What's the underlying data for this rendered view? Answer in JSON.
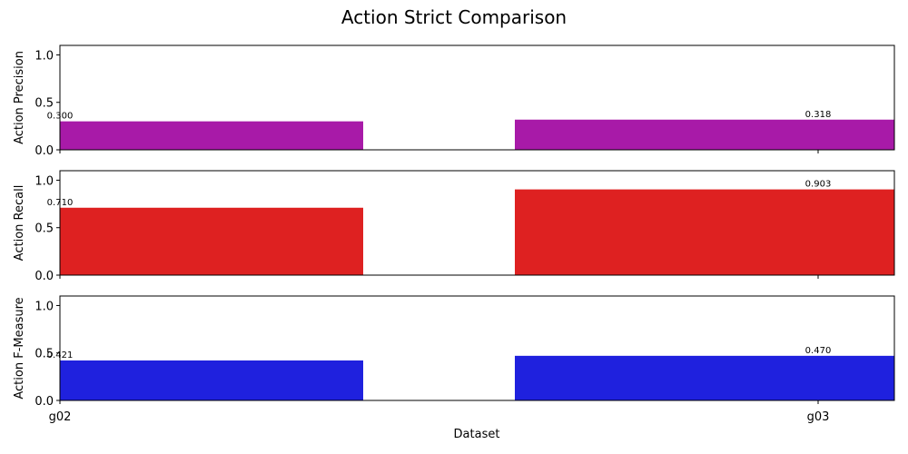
{
  "figure": {
    "title": "Action Strict Comparison"
  },
  "chart_data": [
    {
      "type": "bar",
      "ylabel": "Action Precision",
      "xlabel": "",
      "categories": [
        "g02",
        "g03"
      ],
      "values": [
        0.3,
        0.318
      ],
      "value_labels": [
        "0.300",
        "0.318"
      ],
      "ylim": [
        0,
        1.1
      ],
      "yticks": [
        "0.0",
        "0.5",
        "1.0"
      ],
      "color": "#a81aa8",
      "show_xtick_labels": false
    },
    {
      "type": "bar",
      "ylabel": "Action Recall",
      "xlabel": "",
      "categories": [
        "g02",
        "g03"
      ],
      "values": [
        0.71,
        0.903
      ],
      "value_labels": [
        "0.710",
        "0.903"
      ],
      "ylim": [
        0,
        1.1
      ],
      "yticks": [
        "0.0",
        "0.5",
        "1.0"
      ],
      "color": "#de2121",
      "show_xtick_labels": false
    },
    {
      "type": "bar",
      "ylabel": "Action F-Measure",
      "xlabel": "Dataset",
      "categories": [
        "g02",
        "g03"
      ],
      "values": [
        0.421,
        0.47
      ],
      "value_labels": [
        "0.421",
        "0.470"
      ],
      "ylim": [
        0,
        1.1
      ],
      "yticks": [
        "0.0",
        "0.5",
        "1.0"
      ],
      "color": "#1f21de",
      "show_xtick_labels": true
    }
  ]
}
